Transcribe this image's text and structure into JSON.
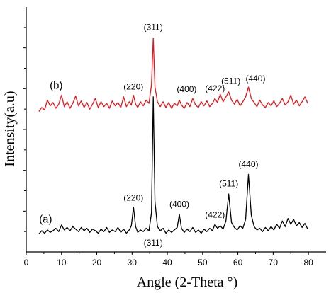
{
  "chart_data": {
    "type": "line",
    "xlabel": "Angle (2-Theta °)",
    "ylabel": "Intensity(a.u)",
    "xlim": [
      0,
      85
    ],
    "xticks": [
      0,
      10,
      20,
      30,
      40,
      50,
      60,
      70,
      80
    ],
    "yticks_labeled": false,
    "colors": {
      "a": "#000000",
      "b": "#e8141a"
    },
    "series": [
      {
        "name": "(a)",
        "color": "#000000",
        "points": [
          [
            3.6,
            0.22
          ],
          [
            4.4,
            0.26
          ],
          [
            5.2,
            0.23
          ],
          [
            6.0,
            0.27
          ],
          [
            6.8,
            0.24
          ],
          [
            7.6,
            0.26
          ],
          [
            8.4,
            0.29
          ],
          [
            9.2,
            0.25
          ],
          [
            10.0,
            0.33
          ],
          [
            10.8,
            0.27
          ],
          [
            11.6,
            0.3
          ],
          [
            12.4,
            0.26
          ],
          [
            13.2,
            0.31
          ],
          [
            14.0,
            0.28
          ],
          [
            14.8,
            0.25
          ],
          [
            15.6,
            0.3
          ],
          [
            16.4,
            0.26
          ],
          [
            17.2,
            0.29
          ],
          [
            18.0,
            0.24
          ],
          [
            18.8,
            0.28
          ],
          [
            19.6,
            0.26
          ],
          [
            20.4,
            0.23
          ],
          [
            21.2,
            0.28
          ],
          [
            22.0,
            0.25
          ],
          [
            22.8,
            0.3
          ],
          [
            23.6,
            0.24
          ],
          [
            24.4,
            0.27
          ],
          [
            25.2,
            0.25
          ],
          [
            26.0,
            0.3
          ],
          [
            26.8,
            0.24
          ],
          [
            27.6,
            0.28
          ],
          [
            28.4,
            0.23
          ],
          [
            29.2,
            0.27
          ],
          [
            29.8,
            0.32
          ],
          [
            30.4,
            0.55
          ],
          [
            31.0,
            0.31
          ],
          [
            31.6,
            0.24
          ],
          [
            32.4,
            0.27
          ],
          [
            33.2,
            0.25
          ],
          [
            34.0,
            0.29
          ],
          [
            34.8,
            0.26
          ],
          [
            35.5,
            0.48
          ],
          [
            36.0,
            1.9
          ],
          [
            36.5,
            0.62
          ],
          [
            37.2,
            0.31
          ],
          [
            38.0,
            0.26
          ],
          [
            38.8,
            0.29
          ],
          [
            39.6,
            0.23
          ],
          [
            40.4,
            0.27
          ],
          [
            41.2,
            0.24
          ],
          [
            42.0,
            0.27
          ],
          [
            42.8,
            0.3
          ],
          [
            43.4,
            0.46
          ],
          [
            44.0,
            0.29
          ],
          [
            44.8,
            0.24
          ],
          [
            45.6,
            0.28
          ],
          [
            46.4,
            0.25
          ],
          [
            47.2,
            0.3
          ],
          [
            48.0,
            0.24
          ],
          [
            48.8,
            0.27
          ],
          [
            49.6,
            0.23
          ],
          [
            50.4,
            0.28
          ],
          [
            51.2,
            0.25
          ],
          [
            52.0,
            0.29
          ],
          [
            52.8,
            0.26
          ],
          [
            53.5,
            0.34
          ],
          [
            54.2,
            0.29
          ],
          [
            55.0,
            0.32
          ],
          [
            55.8,
            0.28
          ],
          [
            56.6,
            0.38
          ],
          [
            57.4,
            0.71
          ],
          [
            58.2,
            0.36
          ],
          [
            59.0,
            0.3
          ],
          [
            59.8,
            0.27
          ],
          [
            60.6,
            0.32
          ],
          [
            61.4,
            0.29
          ],
          [
            62.2,
            0.4
          ],
          [
            63.0,
            0.95
          ],
          [
            63.8,
            0.45
          ],
          [
            64.6,
            0.31
          ],
          [
            65.4,
            0.27
          ],
          [
            66.2,
            0.29
          ],
          [
            67.0,
            0.25
          ],
          [
            67.8,
            0.3
          ],
          [
            68.6,
            0.26
          ],
          [
            69.4,
            0.31
          ],
          [
            70.2,
            0.27
          ],
          [
            71.0,
            0.34
          ],
          [
            71.8,
            0.29
          ],
          [
            72.6,
            0.38
          ],
          [
            73.4,
            0.31
          ],
          [
            74.2,
            0.41
          ],
          [
            75.0,
            0.34
          ],
          [
            75.8,
            0.4
          ],
          [
            76.6,
            0.32
          ],
          [
            77.4,
            0.36
          ],
          [
            78.2,
            0.3
          ],
          [
            79.0,
            0.35
          ],
          [
            79.8,
            0.28
          ]
        ]
      },
      {
        "name": "(b)",
        "color": "#e8141a",
        "points": [
          [
            3.6,
            1.72
          ],
          [
            4.4,
            1.77
          ],
          [
            5.2,
            1.74
          ],
          [
            6.0,
            1.86
          ],
          [
            6.8,
            1.79
          ],
          [
            7.6,
            1.83
          ],
          [
            8.4,
            1.76
          ],
          [
            9.2,
            1.81
          ],
          [
            10.0,
            1.92
          ],
          [
            10.8,
            1.78
          ],
          [
            11.6,
            1.84
          ],
          [
            12.4,
            1.76
          ],
          [
            13.2,
            1.82
          ],
          [
            14.0,
            1.91
          ],
          [
            14.8,
            1.79
          ],
          [
            15.6,
            1.85
          ],
          [
            16.4,
            1.77
          ],
          [
            17.2,
            1.83
          ],
          [
            18.0,
            1.75
          ],
          [
            18.8,
            1.81
          ],
          [
            19.6,
            1.88
          ],
          [
            20.4,
            1.77
          ],
          [
            21.2,
            1.84
          ],
          [
            22.0,
            1.78
          ],
          [
            22.8,
            1.82
          ],
          [
            23.6,
            1.76
          ],
          [
            24.4,
            1.85
          ],
          [
            25.2,
            1.79
          ],
          [
            26.0,
            1.83
          ],
          [
            26.8,
            1.77
          ],
          [
            27.6,
            1.9
          ],
          [
            28.4,
            1.78
          ],
          [
            29.2,
            1.84
          ],
          [
            29.8,
            1.8
          ],
          [
            30.4,
            1.92
          ],
          [
            31.0,
            1.81
          ],
          [
            31.6,
            1.77
          ],
          [
            32.4,
            1.84
          ],
          [
            33.2,
            1.79
          ],
          [
            34.0,
            1.86
          ],
          [
            34.8,
            1.82
          ],
          [
            35.5,
            2.05
          ],
          [
            36.0,
            2.62
          ],
          [
            36.5,
            2.02
          ],
          [
            37.2,
            1.84
          ],
          [
            38.0,
            1.78
          ],
          [
            38.8,
            1.84
          ],
          [
            39.6,
            1.77
          ],
          [
            40.4,
            1.83
          ],
          [
            41.2,
            1.76
          ],
          [
            42.0,
            1.82
          ],
          [
            42.8,
            1.79
          ],
          [
            43.4,
            1.86
          ],
          [
            44.0,
            1.8
          ],
          [
            44.8,
            1.76
          ],
          [
            45.6,
            1.83
          ],
          [
            46.4,
            1.78
          ],
          [
            47.2,
            1.88
          ],
          [
            48.0,
            1.8
          ],
          [
            48.8,
            1.77
          ],
          [
            49.6,
            1.84
          ],
          [
            50.4,
            1.79
          ],
          [
            51.2,
            1.85
          ],
          [
            52.0,
            1.78
          ],
          [
            52.8,
            1.82
          ],
          [
            53.5,
            1.88
          ],
          [
            54.2,
            1.83
          ],
          [
            55.0,
            1.93
          ],
          [
            55.8,
            1.84
          ],
          [
            56.6,
            1.9
          ],
          [
            57.4,
            1.96
          ],
          [
            58.2,
            1.86
          ],
          [
            59.0,
            1.81
          ],
          [
            59.8,
            1.87
          ],
          [
            60.6,
            1.79
          ],
          [
            61.4,
            1.84
          ],
          [
            62.2,
            1.9
          ],
          [
            63.0,
            2.02
          ],
          [
            63.8,
            1.88
          ],
          [
            64.6,
            1.83
          ],
          [
            65.4,
            1.78
          ],
          [
            66.2,
            1.86
          ],
          [
            67.0,
            1.8
          ],
          [
            67.8,
            1.77
          ],
          [
            68.6,
            1.83
          ],
          [
            69.4,
            1.79
          ],
          [
            70.2,
            1.85
          ],
          [
            71.0,
            1.78
          ],
          [
            71.8,
            1.82
          ],
          [
            72.6,
            1.88
          ],
          [
            73.4,
            1.8
          ],
          [
            74.2,
            1.84
          ],
          [
            75.0,
            1.92
          ],
          [
            75.8,
            1.81
          ],
          [
            76.6,
            1.86
          ],
          [
            77.4,
            1.79
          ],
          [
            78.2,
            1.84
          ],
          [
            79.0,
            1.9
          ],
          [
            79.8,
            1.82
          ]
        ]
      }
    ],
    "series_labels": [
      {
        "text": "(a)",
        "x": 5.5,
        "y": 0.36
      },
      {
        "text": "(b)",
        "x": 8.5,
        "y": 2.0
      }
    ],
    "annotations": [
      {
        "series": "(a)",
        "text": "(220)",
        "x": 30.4,
        "y": 0.63
      },
      {
        "series": "(a)",
        "text": "(311)",
        "x": 36.0,
        "y": 0.08
      },
      {
        "series": "(a)",
        "text": "(400)",
        "x": 43.4,
        "y": 0.55
      },
      {
        "series": "(a)",
        "text": "(422)",
        "x": 53.5,
        "y": 0.42
      },
      {
        "series": "(a)",
        "text": "(511)",
        "x": 57.4,
        "y": 0.8
      },
      {
        "series": "(a)",
        "text": "(440)",
        "x": 63.0,
        "y": 1.04
      },
      {
        "series": "(b)",
        "text": "(311)",
        "x": 36.0,
        "y": 2.72
      },
      {
        "series": "(b)",
        "text": "(220)",
        "x": 30.4,
        "y": 1.99
      },
      {
        "series": "(b)",
        "text": "(400)",
        "x": 45.5,
        "y": 1.96
      },
      {
        "series": "(b)",
        "text": "(422)",
        "x": 53.5,
        "y": 1.97
      },
      {
        "series": "(b)",
        "text": "(511)",
        "x": 58.0,
        "y": 2.06
      },
      {
        "series": "(b)",
        "text": "(440)",
        "x": 65.0,
        "y": 2.09
      }
    ],
    "grid": false,
    "legend": "none"
  }
}
